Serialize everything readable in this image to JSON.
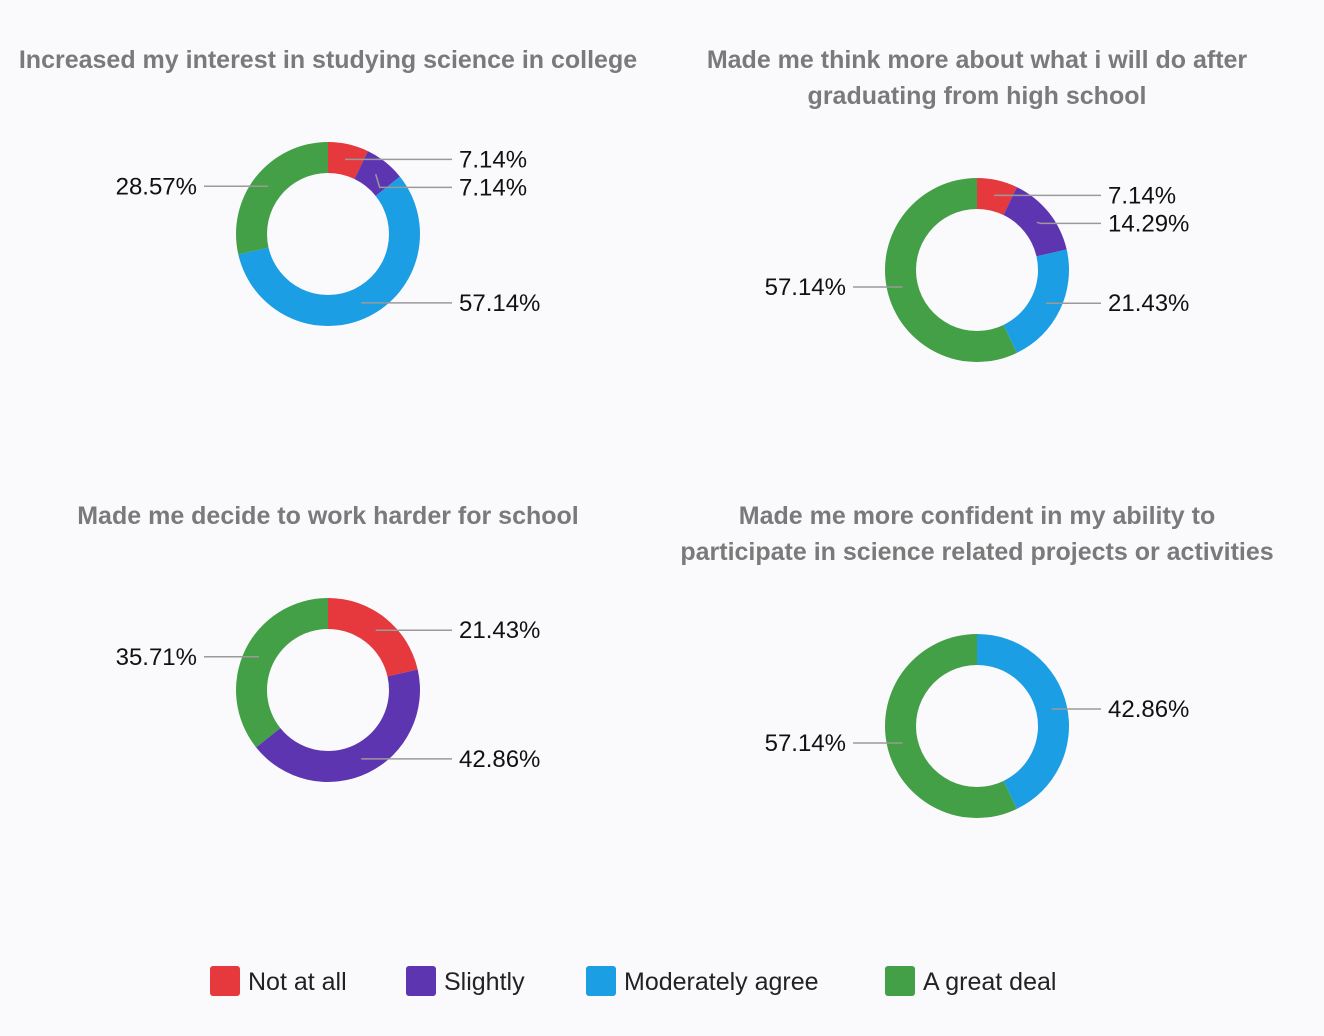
{
  "categories": [
    "Not at all",
    "Slightly",
    "Moderately agree",
    "A great deal"
  ],
  "colors": {
    "Not at all": "#e5393e",
    "Slightly": "#5e35b1",
    "Moderately agree": "#1b9ee3",
    "A great deal": "#43a047"
  },
  "legend": [
    {
      "label": "Not at all",
      "color": "#e5393e"
    },
    {
      "label": "Slightly",
      "color": "#5e35b1"
    },
    {
      "label": "Moderately agree",
      "color": "#1b9ee3"
    },
    {
      "label": "A great deal",
      "color": "#43a047"
    }
  ],
  "chart_data": [
    {
      "type": "pie",
      "title_lines": [
        "Increased my interest in studying science in college"
      ],
      "slices": [
        {
          "category": "Not at all",
          "value": 7.14,
          "label": "7.14%"
        },
        {
          "category": "Slightly",
          "value": 7.14,
          "label": "7.14%"
        },
        {
          "category": "Moderately agree",
          "value": 57.14,
          "label": "57.14%"
        },
        {
          "category": "A great deal",
          "value": 28.57,
          "label": "28.57%"
        }
      ]
    },
    {
      "type": "pie",
      "title_lines": [
        "Made me think more about what i will do after",
        "graduating from high school"
      ],
      "slices": [
        {
          "category": "Not at all",
          "value": 7.14,
          "label": "7.14%"
        },
        {
          "category": "Slightly",
          "value": 14.29,
          "label": "14.29%"
        },
        {
          "category": "Moderately agree",
          "value": 21.43,
          "label": "21.43%"
        },
        {
          "category": "A great deal",
          "value": 57.14,
          "label": "57.14%"
        }
      ]
    },
    {
      "type": "pie",
      "title_lines": [
        "Made me decide to work harder for school"
      ],
      "slices": [
        {
          "category": "Not at all",
          "value": 21.43,
          "label": "21.43%"
        },
        {
          "category": "Slightly",
          "value": 42.86,
          "label": "42.86%"
        },
        {
          "category": "A great deal",
          "value": 35.71,
          "label": "35.71%"
        }
      ]
    },
    {
      "type": "pie",
      "title_lines": [
        "Made me more confident in my ability to",
        "participate in science related projects or activities"
      ],
      "slices": [
        {
          "category": "Moderately agree",
          "value": 42.86,
          "label": "42.86%"
        },
        {
          "category": "A great deal",
          "value": 57.14,
          "label": "57.14%"
        }
      ]
    }
  ]
}
